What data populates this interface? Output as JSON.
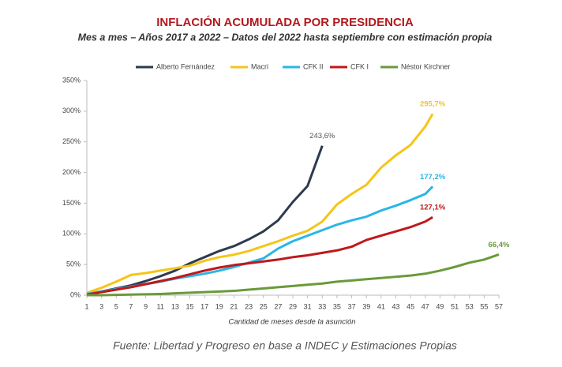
{
  "chart_data": {
    "type": "line",
    "title": "INFLACIÓN ACUMULADA POR PRESIDENCIA",
    "subtitle": "Mes a mes – Años 2017 a 2022 – Datos del 2022 hasta septiembre con estimación propia",
    "xlabel": "Cantidad de meses desde la asunción",
    "source": "Fuente: Libertad y Progreso en base a INDEC y Estimaciones Propias",
    "xlim": [
      1,
      57
    ],
    "xticks": [
      1,
      3,
      5,
      7,
      9,
      11,
      13,
      15,
      17,
      19,
      21,
      23,
      25,
      27,
      29,
      31,
      33,
      35,
      37,
      39,
      41,
      43,
      45,
      47,
      49,
      51,
      53,
      55,
      57
    ],
    "ylim": [
      0,
      350
    ],
    "yticks": [
      {
        "value": 0,
        "label": "0%"
      },
      {
        "value": 50,
        "label": "50%"
      },
      {
        "value": 100,
        "label": "100%"
      },
      {
        "value": 150,
        "label": "150%"
      },
      {
        "value": 200,
        "label": "200%"
      },
      {
        "value": 250,
        "label": "250%"
      },
      {
        "value": 300,
        "label": "300%"
      },
      {
        "value": 350,
        "label": "350%"
      }
    ],
    "grid": false,
    "legend": "top",
    "series": [
      {
        "name": "Alberto Fernández",
        "color": "#2e3a4e",
        "x": [
          1,
          3,
          5,
          7,
          9,
          11,
          13,
          15,
          17,
          19,
          21,
          23,
          25,
          27,
          29,
          31,
          33
        ],
        "values": [
          2,
          6,
          11,
          16,
          23,
          31,
          40,
          52,
          62,
          72,
          80,
          91,
          104,
          122,
          152,
          178,
          243.6
        ],
        "end_label": "243,6%"
      },
      {
        "name": "Macri",
        "color": "#f5c518",
        "x": [
          1,
          3,
          5,
          7,
          9,
          11,
          13,
          15,
          17,
          19,
          21,
          23,
          25,
          27,
          29,
          31,
          33,
          35,
          37,
          39,
          41,
          43,
          45,
          47,
          48
        ],
        "values": [
          4,
          12,
          22,
          33,
          36,
          40,
          44,
          48,
          56,
          62,
          66,
          72,
          80,
          88,
          97,
          105,
          120,
          148,
          165,
          180,
          208,
          228,
          245,
          275,
          295.7
        ],
        "end_label": "295,7%"
      },
      {
        "name": "CFK II",
        "color": "#29b6e8",
        "x": [
          1,
          3,
          5,
          7,
          9,
          11,
          13,
          15,
          17,
          19,
          21,
          23,
          25,
          27,
          29,
          31,
          33,
          35,
          37,
          39,
          41,
          43,
          45,
          47,
          48
        ],
        "values": [
          2,
          6,
          10,
          14,
          18,
          22,
          27,
          31,
          35,
          40,
          46,
          53,
          60,
          76,
          88,
          97,
          106,
          115,
          122,
          128,
          138,
          146,
          155,
          165,
          177.2
        ],
        "end_label": "177,2%"
      },
      {
        "name": "CFK I",
        "color": "#c0181b",
        "x": [
          1,
          3,
          5,
          7,
          9,
          11,
          13,
          15,
          17,
          19,
          21,
          23,
          25,
          27,
          29,
          31,
          33,
          35,
          37,
          39,
          41,
          43,
          45,
          47,
          48
        ],
        "values": [
          1,
          5,
          9,
          13,
          18,
          23,
          28,
          34,
          40,
          45,
          49,
          52,
          55,
          58,
          62,
          65,
          69,
          73,
          79,
          90,
          97,
          104,
          111,
          120,
          127.1
        ],
        "end_label": "127,1%"
      },
      {
        "name": "Néstor Kirchner",
        "color": "#6a9a3a",
        "x": [
          1,
          3,
          5,
          7,
          9,
          11,
          13,
          15,
          17,
          19,
          21,
          23,
          25,
          27,
          29,
          31,
          33,
          35,
          37,
          39,
          41,
          43,
          45,
          47,
          49,
          51,
          53,
          55,
          57
        ],
        "values": [
          0,
          0,
          0.5,
          1,
          1.5,
          2,
          3,
          4,
          5,
          6,
          7,
          9,
          11,
          13,
          15,
          17,
          19,
          22,
          24,
          26,
          28,
          30,
          32,
          35,
          40,
          46,
          53,
          58,
          66.4
        ],
        "end_label": "66,4%"
      }
    ]
  }
}
